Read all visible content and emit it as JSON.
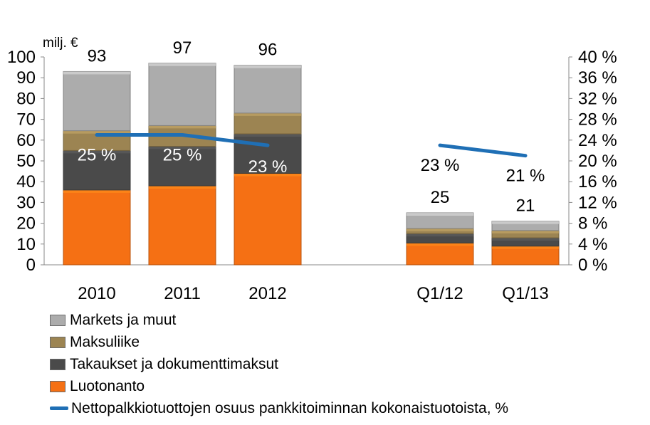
{
  "chart_data": {
    "type": "bar",
    "stacked": true,
    "unit_label": "milj. €",
    "categories": [
      "2010",
      "2011",
      "2012",
      "Q1/12",
      "Q1/13"
    ],
    "totals": [
      "93",
      "97",
      "96",
      "25",
      "21"
    ],
    "series": [
      {
        "name": "Luotonanto",
        "color": "#f57014",
        "values": [
          36,
          38,
          44,
          10.5,
          9
        ]
      },
      {
        "name": "Takaukset ja dokumenttimaksut",
        "color": "#4a4a4a",
        "values": [
          19,
          19,
          19,
          4.5,
          4
        ]
      },
      {
        "name": "Maksuliike",
        "color": "#9c8452",
        "values": [
          9.5,
          10,
          10,
          2.5,
          3.5
        ]
      },
      {
        "name": "Markets ja muut",
        "color": "#acacac",
        "values": [
          28.5,
          30,
          23,
          7.5,
          4.5
        ]
      }
    ],
    "line_series": {
      "name": "Nettopalkkiotuottojen osuus pankkitoiminnan kokonaistuotoista, %",
      "color": "#1f6fb5",
      "values": [
        25,
        25,
        23,
        23,
        21
      ],
      "labels": [
        "25 %",
        "25 %",
        "23 %",
        "23 %",
        "21 %"
      ],
      "segments": [
        [
          0,
          2
        ],
        [
          3,
          4
        ]
      ]
    },
    "y_left": {
      "min": 0,
      "max": 100,
      "ticks": [
        "0",
        "10",
        "20",
        "30",
        "40",
        "50",
        "60",
        "70",
        "80",
        "90",
        "100"
      ]
    },
    "y_right": {
      "min": 0,
      "max": 40,
      "ticks": [
        "0 %",
        "4 %",
        "8 %",
        "12 %",
        "16 %",
        "20 %",
        "24 %",
        "28 %",
        "32 %",
        "36 %",
        "40 %"
      ]
    },
    "legend_order": [
      "Markets ja muut",
      "Maksuliike",
      "Takaukset ja dokumenttimaksut",
      "Luotonanto",
      "Nettopalkkiotuottojen osuus pankkitoiminnan kokonaistuotoista, %"
    ],
    "legend_position": "bottom-left",
    "grid": false
  }
}
